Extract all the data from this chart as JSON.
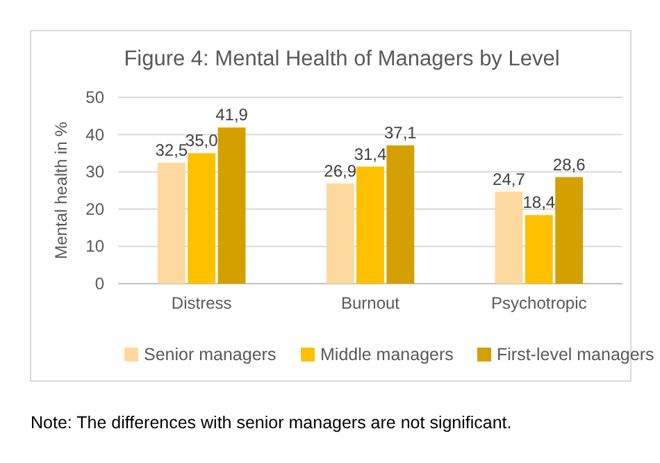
{
  "chart_data": {
    "type": "bar",
    "title": "Figure 4: Mental Health of Managers by Level",
    "ylabel": "Mental health in %",
    "categories": [
      "Distress",
      "Burnout",
      "Psychotropic"
    ],
    "series": [
      {
        "name": "Senior managers",
        "color": "#fdd9a0",
        "values": [
          32.5,
          26.9,
          24.7
        ],
        "value_labels": [
          "32,5",
          "26,9",
          "24,7"
        ]
      },
      {
        "name": "Middle managers",
        "color": "#ffc000",
        "values": [
          35.0,
          31.4,
          18.4
        ],
        "value_labels": [
          "35,0",
          "31,4",
          "18,4"
        ]
      },
      {
        "name": "First-level managers",
        "color": "#d4a000",
        "values": [
          41.9,
          37.1,
          28.6
        ],
        "value_labels": [
          "41,9",
          "37,1",
          "28,6"
        ]
      }
    ],
    "ylim": [
      0,
      50
    ],
    "yticks": [
      0,
      10,
      20,
      30,
      40,
      50
    ],
    "grid": "y",
    "legend": "bottom",
    "annotations": [
      "Note: The differences with senior managers are not significant."
    ]
  }
}
